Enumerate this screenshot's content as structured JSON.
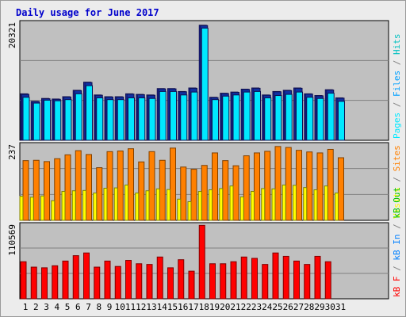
{
  "title": "Daily usage for June 2017",
  "colors": {
    "hits": "#00c0c0",
    "files": "#00a0ff",
    "pages": "#00e8ff",
    "visits": "#ffff00",
    "sites": "#ff8000",
    "kb": "#ff0000",
    "text": "#000000",
    "green_day": "#008040",
    "grey": "#808080",
    "dark": "#101050"
  },
  "chart_data": [
    {
      "type": "bar",
      "panel": "top",
      "ymax_label": "20321",
      "ylim": [
        0,
        20321
      ],
      "categories": [
        "1",
        "2",
        "3",
        "4",
        "5",
        "6",
        "7",
        "8",
        "9",
        "10",
        "11",
        "12",
        "13",
        "14",
        "15",
        "16",
        "17",
        "18",
        "19",
        "20",
        "21",
        "22",
        "23",
        "24",
        "25",
        "26",
        "27",
        "28",
        "29",
        "30",
        "31"
      ],
      "right_labels": [
        "Pages",
        "/",
        "Files",
        "/",
        "Hits"
      ],
      "series": [
        {
          "name": "Hits",
          "values": [
            8000,
            6700,
            7200,
            7100,
            7500,
            8600,
            10000,
            7800,
            7500,
            7500,
            8000,
            7900,
            7800,
            8900,
            8900,
            8400,
            9000,
            19800,
            7400,
            8100,
            8300,
            8800,
            9000,
            7800,
            8400,
            8600,
            9000,
            8000,
            7700,
            8700,
            7300
          ]
        },
        {
          "name": "Files",
          "values": [
            7900,
            6650,
            7150,
            7050,
            7450,
            8550,
            9950,
            7750,
            7450,
            7450,
            7950,
            7850,
            7750,
            8850,
            8850,
            8350,
            8950,
            19750,
            7350,
            8050,
            8250,
            8750,
            8950,
            7750,
            8350,
            8550,
            8950,
            7950,
            7650,
            8650,
            7250
          ]
        },
        {
          "name": "Pages",
          "values": [
            7400,
            6400,
            6900,
            6800,
            7000,
            8000,
            9400,
            7300,
            7000,
            7000,
            7300,
            7300,
            7200,
            8400,
            8400,
            7800,
            8300,
            19300,
            7000,
            7600,
            7800,
            8300,
            8400,
            7300,
            7700,
            7900,
            8300,
            7400,
            7200,
            8100,
            6700
          ]
        }
      ]
    },
    {
      "type": "bar",
      "panel": "middle",
      "ymax_label": "237",
      "ylim": [
        0,
        237
      ],
      "categories": [
        "1",
        "2",
        "3",
        "4",
        "5",
        "6",
        "7",
        "8",
        "9",
        "10",
        "11",
        "12",
        "13",
        "14",
        "15",
        "16",
        "17",
        "18",
        "19",
        "20",
        "21",
        "22",
        "23",
        "24",
        "25",
        "26",
        "27",
        "28",
        "29",
        "30",
        "31"
      ],
      "right_labels": [
        "Visits",
        "/",
        "Sites"
      ],
      "series": [
        {
          "name": "Visits",
          "values": [
            75,
            72,
            76,
            61,
            90,
            92,
            93,
            85,
            100,
            101,
            110,
            85,
            92,
            98,
            96,
            66,
            58,
            90,
            95,
            99,
            107,
            73,
            90,
            99,
            98,
            110,
            109,
            102,
            95,
            107,
            85
          ]
        },
        {
          "name": "Sites",
          "values": [
            186,
            187,
            183,
            192,
            204,
            217,
            205,
            164,
            214,
            216,
            223,
            182,
            214,
            187,
            225,
            166,
            159,
            171,
            210,
            186,
            170,
            201,
            210,
            215,
            230,
            227,
            218,
            213,
            210,
            221,
            195
          ]
        }
      ]
    },
    {
      "type": "bar",
      "panel": "bottom",
      "ymax_label": "110569",
      "ylim": [
        0,
        110569
      ],
      "categories": [
        "1",
        "2",
        "3",
        "4",
        "5",
        "6",
        "7",
        "8",
        "9",
        "10",
        "11",
        "12",
        "13",
        "14",
        "15",
        "16",
        "17",
        "18",
        "19",
        "20",
        "21",
        "22",
        "23",
        "24",
        "25",
        "26",
        "27",
        "28",
        "29",
        "30",
        "31"
      ],
      "right_labels": [
        "kB F",
        "/",
        "kB In",
        "/",
        "kB Out"
      ],
      "series": [
        {
          "name": "kB F",
          "values": [
            55000,
            47000,
            46000,
            49000,
            56000,
            64000,
            68000,
            47000,
            56000,
            48000,
            57000,
            52000,
            51000,
            62000,
            46000,
            58000,
            41000,
            109000,
            52000,
            52000,
            55000,
            62000,
            60000,
            51000,
            68000,
            63000,
            56000,
            51000,
            63000,
            55000,
            0
          ]
        }
      ]
    }
  ],
  "x_label_colors": [
    "#000000",
    "#000000",
    "#008040",
    "#008040",
    "#000000",
    "#000000",
    "#000000",
    "#000000",
    "#000000",
    "#008040",
    "#008040",
    "#000000",
    "#000000",
    "#000000",
    "#000000",
    "#000000",
    "#008040",
    "#008040",
    "#000000",
    "#000000",
    "#000000",
    "#000000",
    "#000000",
    "#008040",
    "#008040",
    "#000000",
    "#000000",
    "#000000",
    "#000000",
    "#000000",
    "#008040"
  ]
}
